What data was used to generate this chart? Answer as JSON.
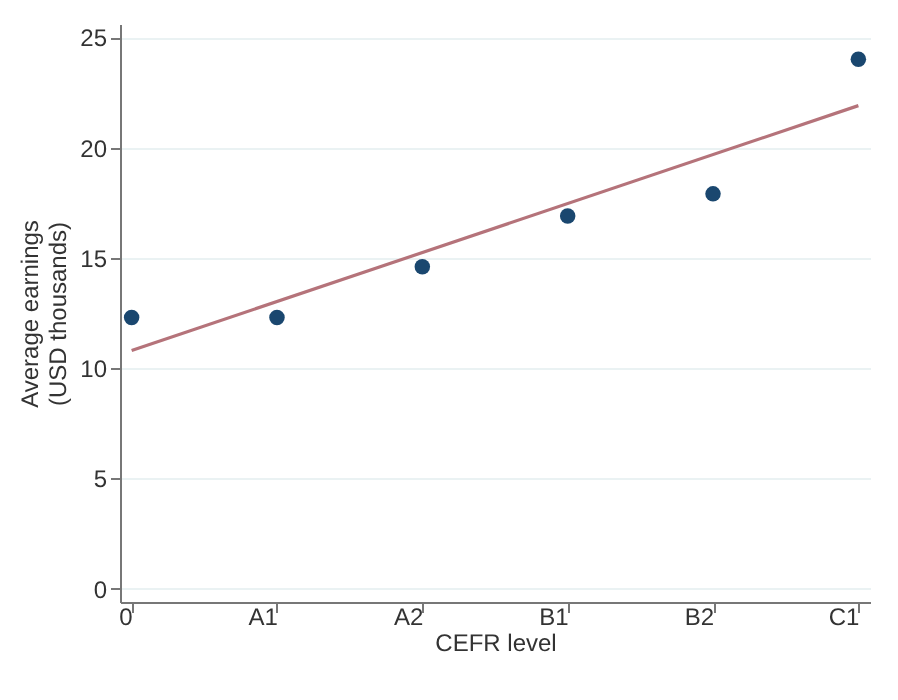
{
  "chart_data": {
    "type": "scatter",
    "xlabel": "CEFR level",
    "ylabel": "Average earnings\n(USD thousands)",
    "categories": [
      "0",
      "A1",
      "A2",
      "B1",
      "B2",
      "C1"
    ],
    "series": [
      {
        "color": "#1a476f",
        "marker": "circle",
        "values": [
          12.3,
          12.3,
          14.6,
          16.9,
          17.9,
          24.0
        ]
      },
      {
        "type": "line",
        "color": "#b5737a",
        "marker": "none",
        "line_style": "solid",
        "x": [
          "0",
          "C1"
        ],
        "values": [
          10.8,
          21.9
        ]
      }
    ],
    "ylim": [
      -0.6,
      25.6
    ],
    "yticks": [
      0,
      5,
      10,
      15,
      20,
      25
    ],
    "grid": "y"
  }
}
